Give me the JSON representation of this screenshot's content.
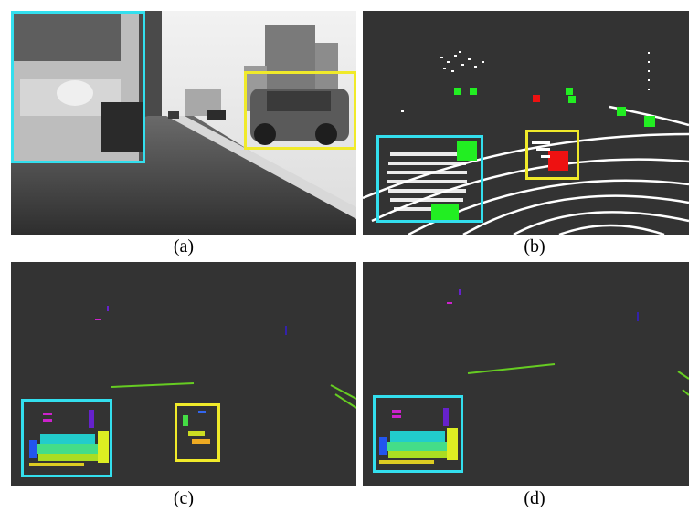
{
  "figure": {
    "captions": [
      "(a)",
      "(b)",
      "(c)",
      "(d)"
    ]
  },
  "colors": {
    "background_dark": "#333333",
    "box_cyan": "#33dfee",
    "box_yellow": "#f0ea2a",
    "marker_green": "#22ee22",
    "marker_red": "#ee1111",
    "points_white": "#ffffff"
  },
  "panels": [
    {
      "id": "a",
      "content": "grayscale-camera-image"
    },
    {
      "id": "b",
      "content": "lidar-point-cloud-with-markers"
    },
    {
      "id": "c",
      "content": "colored-segmentation-two-boxes"
    },
    {
      "id": "d",
      "content": "colored-segmentation-one-box"
    }
  ]
}
